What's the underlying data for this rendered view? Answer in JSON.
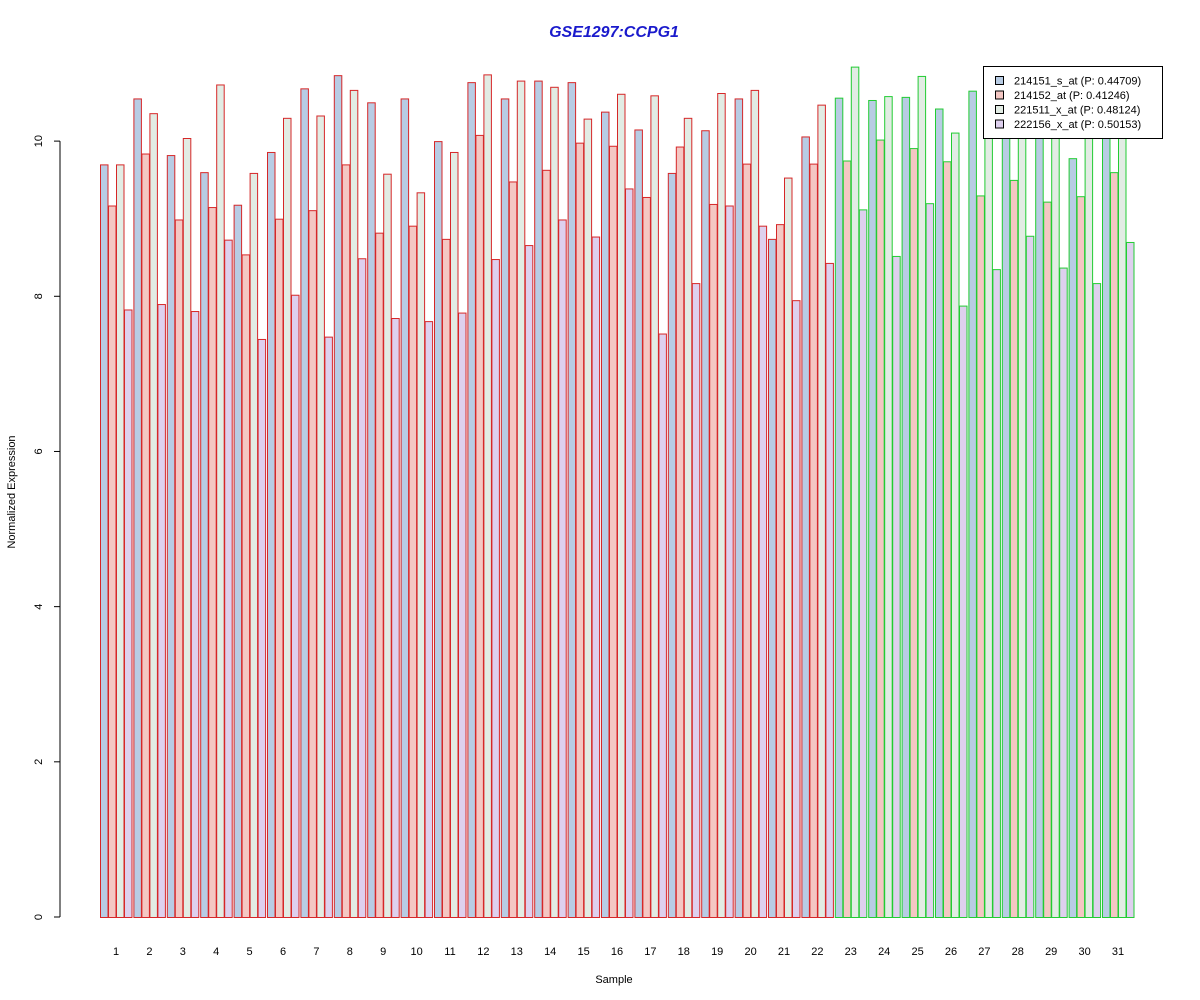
{
  "chart_data": {
    "type": "bar",
    "title": "GSE1297:CCPG1",
    "xlabel": "Sample",
    "ylabel": "Normalized Expression",
    "ylim": [
      0,
      11.2
    ],
    "yticks": [
      0,
      2,
      4,
      6,
      8,
      10
    ],
    "grid": false,
    "legend_position": "top-right",
    "categories": [
      "1",
      "2",
      "3",
      "4",
      "5",
      "6",
      "7",
      "8",
      "9",
      "10",
      "11",
      "12",
      "13",
      "14",
      "15",
      "16",
      "17",
      "18",
      "19",
      "20",
      "21",
      "22",
      "23",
      "24",
      "25",
      "26",
      "27",
      "28",
      "29",
      "30",
      "31"
    ],
    "group_border_colors": {
      "1-22": "#d62728",
      "23-31": "#22cc33"
    },
    "series": [
      {
        "name": "214151_s_at (P: 0.44709)",
        "fill": "#b8cce4",
        "values": [
          9.7,
          10.55,
          9.82,
          9.6,
          9.18,
          9.86,
          10.68,
          10.85,
          10.5,
          10.55,
          10.0,
          10.76,
          10.55,
          10.78,
          10.76,
          10.38,
          10.15,
          9.59,
          10.14,
          10.55,
          8.74,
          10.06,
          10.56,
          10.53,
          10.57,
          10.42,
          10.65,
          10.25,
          10.15,
          9.78,
          10.5
        ]
      },
      {
        "name": "214152_at (P: 0.41246)",
        "fill": "#f4c7c3",
        "values": [
          9.17,
          9.84,
          8.99,
          9.15,
          8.54,
          9.0,
          9.11,
          9.7,
          8.82,
          8.91,
          8.74,
          10.08,
          9.48,
          9.63,
          9.98,
          9.94,
          9.28,
          9.93,
          9.19,
          9.71,
          8.93,
          9.71,
          9.75,
          10.02,
          9.91,
          9.74,
          9.3,
          9.5,
          9.22,
          9.29,
          9.6
        ]
      },
      {
        "name": "221511_x_at (P: 0.48124)",
        "fill": "#e2ece4",
        "values": [
          9.7,
          10.36,
          10.04,
          10.73,
          9.59,
          10.3,
          10.33,
          10.66,
          9.58,
          9.34,
          9.86,
          10.86,
          10.78,
          10.7,
          10.29,
          10.61,
          10.59,
          10.3,
          10.62,
          10.66,
          9.53,
          10.47,
          10.96,
          10.58,
          10.84,
          10.11,
          10.55,
          10.45,
          10.35,
          10.1,
          10.3
        ]
      },
      {
        "name": "222156_x_at (P: 0.50153)",
        "fill": "#ded0ee",
        "values": [
          7.83,
          7.9,
          7.81,
          8.73,
          7.45,
          8.02,
          7.48,
          8.49,
          7.72,
          7.68,
          7.79,
          8.48,
          8.66,
          8.99,
          8.77,
          9.39,
          7.52,
          8.17,
          9.17,
          8.91,
          7.95,
          8.43,
          9.12,
          8.52,
          9.2,
          7.88,
          8.35,
          8.78,
          8.37,
          8.17,
          8.7
        ]
      }
    ]
  }
}
